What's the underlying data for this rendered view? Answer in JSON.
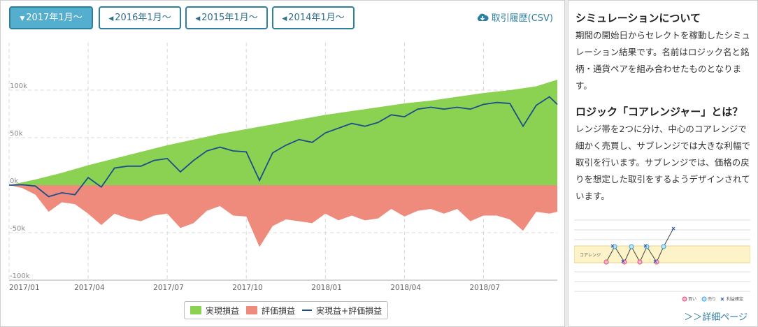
{
  "tabs": [
    {
      "label": "2017年1月～",
      "active": true
    },
    {
      "label": "2016年1月～",
      "active": false
    },
    {
      "label": "2015年1月～",
      "active": false
    },
    {
      "label": "2014年1月～",
      "active": false
    }
  ],
  "csv_link": "取引履歴(CSV)",
  "legend": {
    "realized": "実現損益",
    "unrealized": "評価損益",
    "combined": "実現益+評価損益"
  },
  "colors": {
    "realized": "#8bd252",
    "unrealized": "#ee8b7c",
    "combined": "#1a4f8a",
    "accent": "#2e7e9e"
  },
  "chart_data": {
    "type": "area",
    "x_ticks": [
      "2017/01",
      "2017/04",
      "2017/07",
      "2017/10",
      "2018/01",
      "2018/04",
      "2018/07"
    ],
    "y_ticks": [
      "100k",
      "50k",
      "0k",
      "-50k",
      "-100k"
    ],
    "ylim": [
      -100000,
      150000
    ],
    "x_range": [
      0,
      20.8
    ],
    "series": [
      {
        "name": "実現損益",
        "x": [
          0,
          1,
          2,
          3,
          4,
          5,
          6,
          7,
          8,
          9,
          10,
          11,
          12,
          13,
          14,
          15,
          16,
          17,
          18,
          19,
          20,
          20.8
        ],
        "values": [
          0,
          6000,
          13000,
          21000,
          28000,
          35000,
          42000,
          48000,
          54000,
          59000,
          64000,
          69000,
          74000,
          78000,
          82000,
          86000,
          89000,
          93000,
          97000,
          100000,
          104000,
          111000
        ]
      },
      {
        "name": "評価損益",
        "x": [
          0,
          0.5,
          1,
          1.5,
          2,
          2.5,
          3,
          3.5,
          4,
          4.5,
          5,
          5.5,
          6,
          6.5,
          7,
          7.5,
          8,
          8.5,
          9,
          9.5,
          10,
          10.5,
          11,
          11.5,
          12,
          12.5,
          13,
          13.5,
          14,
          14.5,
          15,
          15.5,
          16,
          16.5,
          17,
          17.5,
          18,
          18.5,
          19,
          19.5,
          20,
          20.5,
          20.8
        ],
        "values": [
          0,
          -3000,
          -10000,
          -28000,
          -18000,
          -20000,
          -30000,
          -42000,
          -30000,
          -35000,
          -38000,
          -32000,
          -30000,
          -45000,
          -40000,
          -27000,
          -22000,
          -32000,
          -33000,
          -65000,
          -43000,
          -36000,
          -38000,
          -40000,
          -30000,
          -37000,
          -32000,
          -37000,
          -35000,
          -25000,
          -33000,
          -27000,
          -25000,
          -30000,
          -25000,
          -38000,
          -32000,
          -32000,
          -36000,
          -48000,
          -28000,
          -30000,
          -28000
        ]
      },
      {
        "name": "実現益+評価損益",
        "x": [
          0,
          0.5,
          1,
          1.5,
          2,
          2.5,
          3,
          3.5,
          4,
          4.5,
          5,
          5.5,
          6,
          6.5,
          7,
          7.5,
          8,
          8.5,
          9,
          9.5,
          10,
          10.5,
          11,
          11.5,
          12,
          12.5,
          13,
          13.5,
          14,
          14.5,
          15,
          15.5,
          16,
          16.5,
          17,
          17.5,
          18,
          18.5,
          19,
          19.5,
          20,
          20.5,
          20.8
        ],
        "values": [
          0,
          500,
          -1000,
          -12000,
          -8000,
          -10000,
          8000,
          -2000,
          18000,
          20000,
          20000,
          26000,
          28000,
          14000,
          26000,
          36000,
          40000,
          36000,
          35000,
          5000,
          34000,
          42000,
          48000,
          45000,
          55000,
          60000,
          65000,
          62000,
          66000,
          74000,
          72000,
          80000,
          82000,
          80000,
          82000,
          80000,
          85000,
          87000,
          86000,
          62000,
          84000,
          93000,
          85000
        ]
      }
    ]
  },
  "sidebar": {
    "h1": "シミュレーションについて",
    "p1": "期間の開始日からセレクトを稼動したシミュレーション結果です。名前はロジック名と銘柄・通貨ペアを組み合わせたものとなります。",
    "h2": "ロジック「コアレンジャー」とは？",
    "p2": "レンジ帯を2つに分け、中心のコアレンジで細かく売買し、サブレンジでは大きな利幅で取引を行います。サブレンジでは、価格の戻りを想定した取引をするようデザインされています。",
    "diagram": {
      "range_label": "コアレンジ",
      "buy": "買い",
      "sell": "売り",
      "settle": "利益確定"
    },
    "detail_link": "＞＞詳細ページ"
  }
}
